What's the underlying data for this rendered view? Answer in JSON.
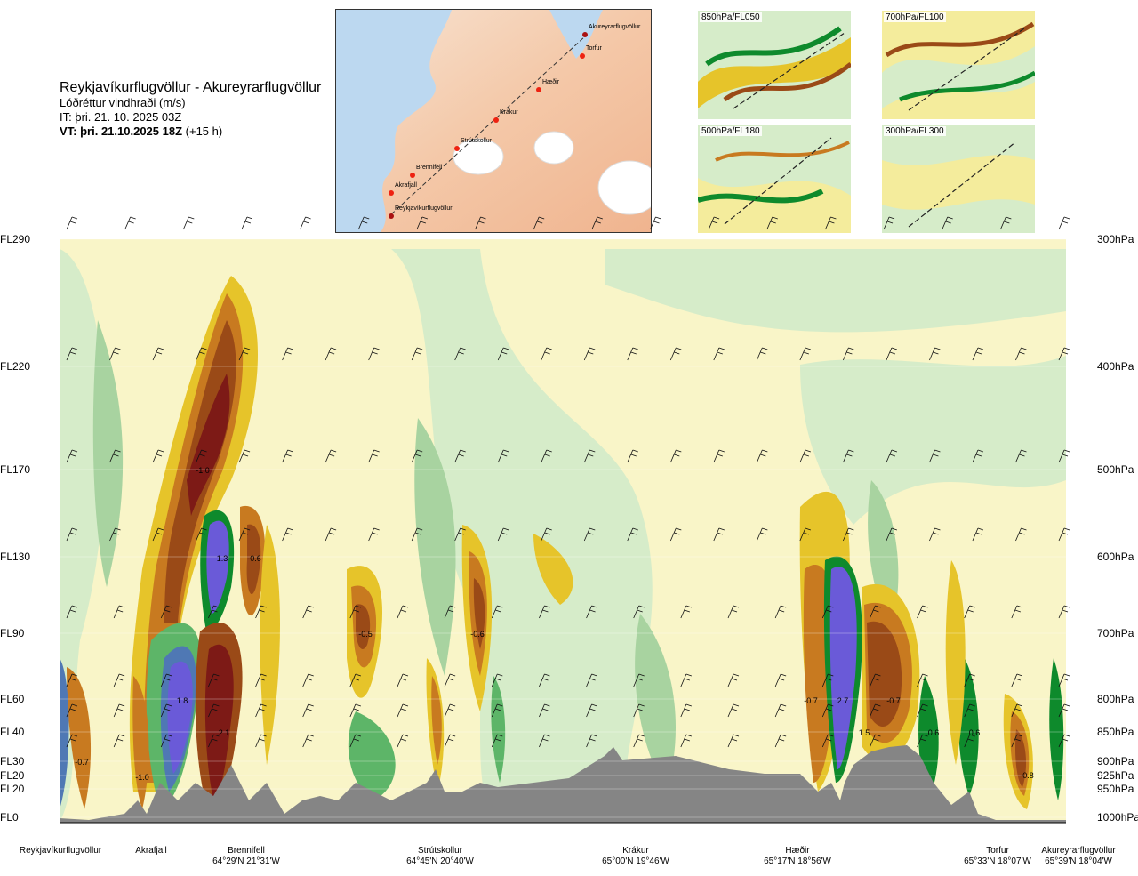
{
  "header": {
    "route_title": "Reykjavíkurflugvöllur - Akureyrarflugvöllur",
    "variable": "Lóðréttur vindhraði (m/s)",
    "issue_time": "IT: þri. 21. 10. 2025 03Z",
    "valid_time": "VT: þri. 21.10.2025 18Z",
    "lead_time": "(+15 h)"
  },
  "route_map": {
    "points": [
      "Akureyrarflugvöllur",
      "Torfur",
      "Hæðir",
      "Krákur",
      "Strútskollur",
      "Brennifell",
      "Akrafjall",
      "Reykjavíkurflugvöllur"
    ]
  },
  "thumbnails": [
    {
      "label": "850hPa/FL050"
    },
    {
      "label": "700hPa/FL100"
    },
    {
      "label": "500hPa/FL180"
    },
    {
      "label": "300hPa/FL300"
    }
  ],
  "chart_data": {
    "type": "heatmap",
    "y_levels_left": [
      "FL290",
      "FL220",
      "FL170",
      "FL130",
      "FL90",
      "FL60",
      "FL40",
      "FL30",
      "FL20",
      "FL20",
      "FL0"
    ],
    "y_levels_right": [
      "300hPa",
      "400hPa",
      "500hPa",
      "600hPa",
      "700hPa",
      "800hPa",
      "850hPa",
      "900hPa",
      "925hPa",
      "950hPa",
      "1000hPa"
    ],
    "stations": [
      {
        "name": "Reykjavíkurflugvöllur",
        "coord": ""
      },
      {
        "name": "Akrafjall",
        "coord": ""
      },
      {
        "name": "Brennifell",
        "coord": "64°29'N 21°31'W"
      },
      {
        "name": "Strútskollur",
        "coord": "64°45'N 20°40'W"
      },
      {
        "name": "Krákur",
        "coord": "65°00'N 19°46'W"
      },
      {
        "name": "Hæðir",
        "coord": "65°17'N 18°56'W"
      },
      {
        "name": "Torfur",
        "coord": "65°33'N 18°07'W"
      },
      {
        "name": "Akureyrarflugvöllur",
        "coord": "65°39'N 18°04'W"
      }
    ],
    "annotations": [
      "-1.0",
      "1.3",
      "-0.6",
      "-0.5",
      "-0.6",
      "1.8",
      "2.1",
      "-0.7",
      "-1.0",
      "-0.7",
      "2.7",
      "-0.7",
      "1.5",
      "0.6",
      "0.6",
      "-0.8"
    ],
    "colors": {
      "strong_down": "#7d1a16",
      "down_3": "#9a4a17",
      "down_2": "#c87a20",
      "down_1": "#e6c42a",
      "weak_down": "#f4ec9c",
      "neutral": "#f9f5c8",
      "weak_up": "#d6ecc9",
      "up_1": "#a8d3a0",
      "up_2": "#5db568",
      "up_3": "#0e8a2c",
      "strong_up": "#4f78b4",
      "max_up": "#6a5ad8",
      "terrain": "#858585"
    }
  }
}
